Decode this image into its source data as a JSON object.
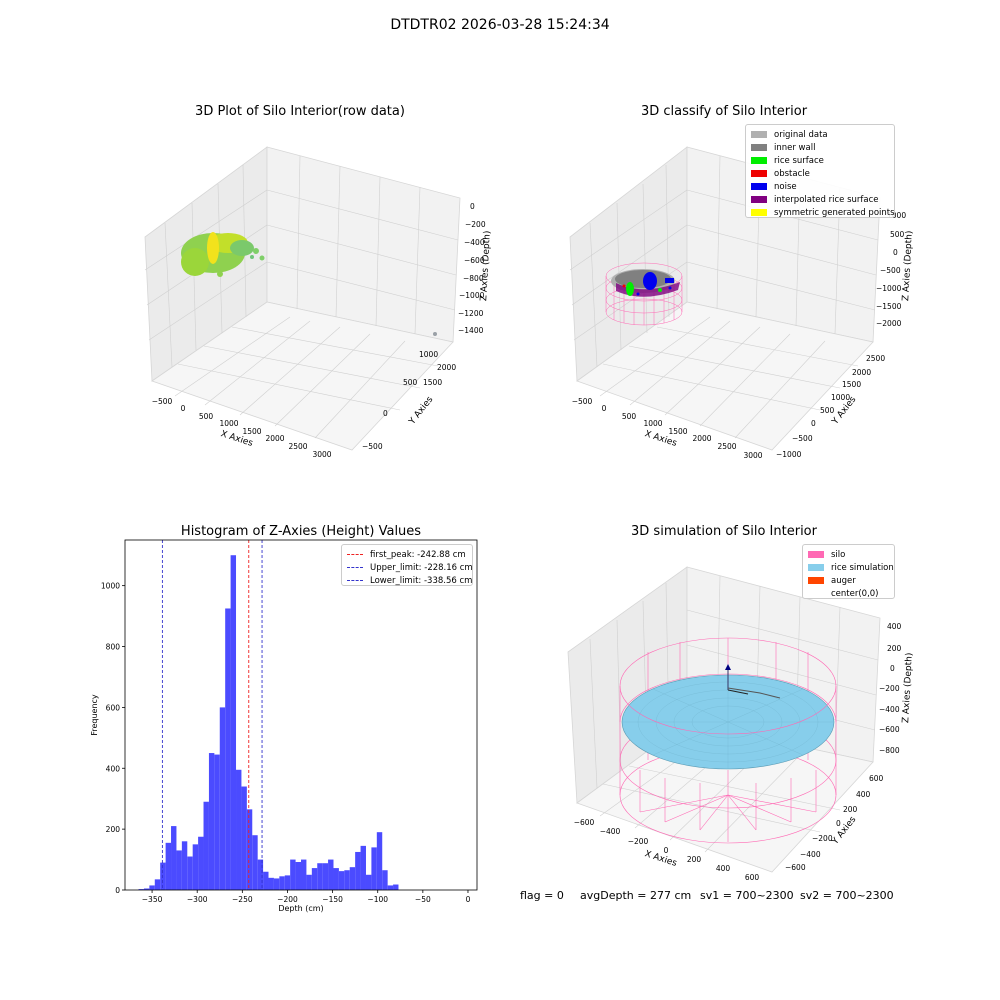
{
  "suptitle": "DTDTR02 2026-03-28 15:24:34",
  "chart_data": [
    {
      "type": "scatter",
      "title": "3D Plot of Silo Interior(row data)",
      "xlabel": "X Axies",
      "ylabel": "Y Axies",
      "zlabel": "Z Axies (Depth)",
      "x_ticks": [
        "−500",
        "0",
        "500",
        "1000",
        "1500",
        "2000",
        "2500",
        "3000"
      ],
      "y_ticks": [
        "−500",
        "0",
        "500",
        "1000",
        "1500",
        "2000"
      ],
      "z_ticks": [
        "0",
        "−200",
        "−400",
        "−600",
        "−800",
        "−1000",
        "−1200",
        "−1400"
      ]
    },
    {
      "type": "scatter",
      "title": "3D classify of Silo Interior",
      "xlabel": "X Axies",
      "ylabel": "Y Axies",
      "zlabel": "Z Axies (Depth)",
      "x_ticks": [
        "−500",
        "0",
        "500",
        "1000",
        "1500",
        "2000",
        "2500",
        "3000"
      ],
      "y_ticks": [
        "−1000",
        "−500",
        "0",
        "500",
        "1000",
        "1500",
        "2000",
        "2500"
      ],
      "z_ticks": [
        "1000",
        "500",
        "0",
        "−500",
        "−1000",
        "−1500",
        "−2000"
      ],
      "legend": [
        {
          "label": "original data",
          "color": "#b0b0b0"
        },
        {
          "label": "inner wall",
          "color": "#808080"
        },
        {
          "label": "rice surface",
          "color": "#00ee00"
        },
        {
          "label": "obstacle",
          "color": "#ee0000"
        },
        {
          "label": "noise",
          "color": "#0000ee"
        },
        {
          "label": "interpolated rice surface",
          "color": "#800080"
        },
        {
          "label": "symmetric generated points",
          "color": "#ffff00"
        }
      ]
    },
    {
      "type": "bar",
      "title": "Histogram of Z-Axies (Height) Values",
      "xlabel": "Depth (cm)",
      "ylabel": "Frequency",
      "xlim": [
        -380,
        10
      ],
      "ylim": [
        0,
        1150
      ],
      "x_ticks": [
        "−350",
        "−300",
        "−250",
        "−200",
        "−150",
        "−100",
        "−50",
        "0"
      ],
      "y_ticks": [
        "0",
        "200",
        "400",
        "600",
        "800",
        "1000"
      ],
      "bin_start": -365,
      "bin_width": 6,
      "values": [
        3,
        5,
        15,
        35,
        90,
        155,
        210,
        130,
        160,
        110,
        150,
        175,
        290,
        450,
        445,
        600,
        925,
        1100,
        395,
        340,
        265,
        180,
        100,
        60,
        40,
        38,
        45,
        48,
        100,
        92,
        100,
        50,
        72,
        88,
        88,
        100,
        72,
        62,
        65,
        75,
        125,
        145,
        50,
        140,
        190,
        65,
        15,
        18
      ],
      "bar_color": "#4b4bff",
      "lines": [
        {
          "label": "first_peak: -242.88 cm",
          "x": -242.88,
          "color": "#ee2222"
        },
        {
          "label": "Upper_limit: -228.16 cm",
          "x": -228.16,
          "color": "#3333cc"
        },
        {
          "label": "Lower_limit: -338.56 cm",
          "x": -338.56,
          "color": "#3333cc"
        }
      ]
    },
    {
      "type": "scatter",
      "title": "3D simulation of Silo Interior",
      "xlabel": "X Axies",
      "ylabel": "Y Axies",
      "zlabel": "Z Axies (Depth)",
      "x_ticks": [
        "−600",
        "−400",
        "−200",
        "0",
        "200",
        "400",
        "600"
      ],
      "y_ticks": [
        "−600",
        "−400",
        "−200",
        "0",
        "200",
        "400",
        "600"
      ],
      "z_ticks": [
        "400",
        "200",
        "0",
        "−200",
        "−400",
        "−600",
        "−800"
      ],
      "legend": [
        {
          "label": "silo",
          "color": "#ff69b4"
        },
        {
          "label": "rice simulation",
          "color": "#87ceeb"
        },
        {
          "label": "auger",
          "color": "#ff4500"
        },
        {
          "label": "center(0,0)",
          "color": "#ffffff"
        }
      ]
    }
  ],
  "status": {
    "flag": "flag = 0",
    "avg_depth": "avgDepth = 277 cm",
    "sv1": "sv1 = 700~2300",
    "sv2": "sv2 = 700~2300"
  },
  "colors": {
    "pane_left": "#ebebeb",
    "pane_right": "#f2f2f2",
    "pane_floor": "#f6f6f6",
    "silo_mesh": "#ff69b4",
    "rice": "#87ceeb",
    "raw_points": "#8fd14f"
  }
}
